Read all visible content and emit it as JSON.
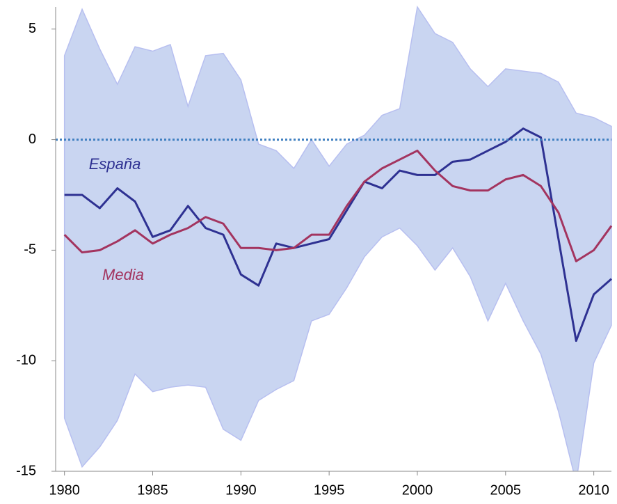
{
  "chart_data": {
    "type": "line",
    "x": [
      1980,
      1981,
      1982,
      1983,
      1984,
      1985,
      1986,
      1987,
      1988,
      1989,
      1990,
      1991,
      1992,
      1993,
      1994,
      1995,
      1996,
      1997,
      1998,
      1999,
      2000,
      2001,
      2002,
      2003,
      2004,
      2005,
      2006,
      2007,
      2008,
      2009,
      2010,
      2011
    ],
    "xlim": [
      1979.5,
      2011
    ],
    "xticks": [
      1980,
      1985,
      1990,
      1995,
      2000,
      2005,
      2010
    ],
    "ylim": [
      -15,
      6
    ],
    "yticks": [
      -15,
      -10,
      -5,
      0,
      5
    ],
    "reference_line": 0,
    "reference_color": "#3f7fc0",
    "band": {
      "color": "#c9d5f1",
      "edge_color": "#b7bff0",
      "upper": [
        3.8,
        5.9,
        4.1,
        2.5,
        4.2,
        4.0,
        4.3,
        1.5,
        3.8,
        3.9,
        2.7,
        -0.2,
        -0.5,
        -1.3,
        0.0,
        -1.2,
        -0.2,
        0.2,
        1.1,
        1.4,
        6.0,
        4.8,
        4.4,
        3.2,
        2.4,
        3.2,
        3.1,
        3.0,
        2.6,
        1.2,
        1.0,
        0.6
      ],
      "lower": [
        -12.6,
        -14.8,
        -13.9,
        -12.7,
        -10.6,
        -11.4,
        -11.2,
        -11.1,
        -11.2,
        -13.1,
        -13.6,
        -11.8,
        -11.3,
        -10.9,
        -8.2,
        -7.9,
        -6.7,
        -5.3,
        -4.4,
        -4.0,
        -4.8,
        -5.9,
        -4.9,
        -6.2,
        -8.2,
        -6.5,
        -8.2,
        -9.7,
        -12.3,
        -15.5,
        -10.1,
        -8.4
      ]
    },
    "series": [
      {
        "name": "España",
        "color": "#2e3192",
        "values": [
          -2.5,
          -2.5,
          -3.1,
          -2.2,
          -2.8,
          -4.4,
          -4.1,
          -3.0,
          -4.0,
          -4.3,
          -6.1,
          -6.6,
          -4.7,
          -4.9,
          -4.7,
          -4.5,
          -3.2,
          -1.9,
          -2.2,
          -1.4,
          -1.6,
          -1.6,
          -1.0,
          -0.9,
          -0.5,
          -0.1,
          0.5,
          0.1,
          -4.5,
          -9.1,
          -7.0,
          -6.3
        ]
      },
      {
        "name": "Media",
        "color": "#a3345f",
        "values": [
          -4.3,
          -5.1,
          -5.0,
          -4.6,
          -4.1,
          -4.7,
          -4.3,
          -4.0,
          -3.5,
          -3.8,
          -4.9,
          -4.9,
          -5.0,
          -4.9,
          -4.3,
          -4.3,
          -3.0,
          -1.9,
          -1.3,
          -0.9,
          -0.5,
          -1.4,
          -2.1,
          -2.3,
          -2.3,
          -1.8,
          -1.6,
          -2.1,
          -3.3,
          -5.5,
          -5.0,
          -3.9
        ]
      }
    ]
  }
}
